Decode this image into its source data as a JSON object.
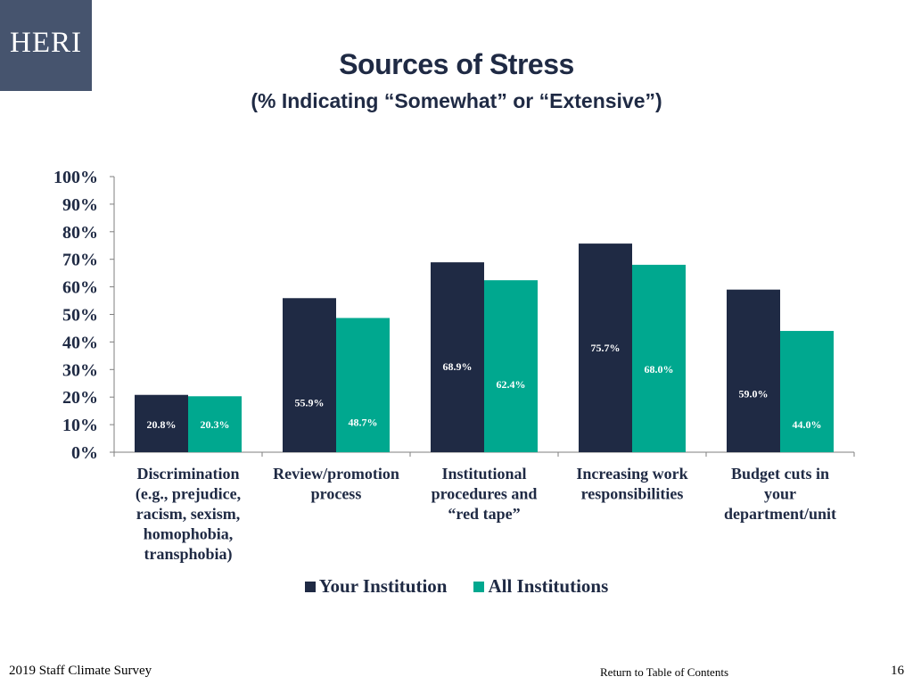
{
  "logo": {
    "text": "HERI"
  },
  "header": {
    "title": "Sources of Stress",
    "subtitle": "(% Indicating “Somewhat” or “Extensive”)"
  },
  "chart_data": {
    "type": "bar",
    "title": "Sources of Stress",
    "subtitle": "(% Indicating “Somewhat” or “Extensive”)",
    "categories": [
      [
        "Discrimination",
        "(e.g., prejudice,",
        "racism, sexism,",
        "homophobia,",
        "transphobia)"
      ],
      [
        "Review/promotion",
        "process"
      ],
      [
        "Institutional",
        "procedures and",
        "“red tape”"
      ],
      [
        "Increasing work",
        "responsibilities"
      ],
      [
        "Budget cuts in",
        "your",
        "department/unit"
      ]
    ],
    "series": [
      {
        "name": "Your Institution",
        "color": "#1f2a44",
        "values": [
          20.8,
          55.9,
          68.9,
          75.7,
          59.0
        ],
        "labels": [
          "20.8%",
          "55.9%",
          "68.9%",
          "75.7%",
          "59.0%"
        ]
      },
      {
        "name": "All Institutions",
        "color": "#00a88f",
        "values": [
          20.3,
          48.7,
          62.4,
          68.0,
          44.0
        ],
        "labels": [
          "20.3%",
          "48.7%",
          "62.4%",
          "68.0%",
          "44.0%"
        ]
      }
    ],
    "yticks": [
      "0%",
      "10%",
      "20%",
      "30%",
      "40%",
      "50%",
      "60%",
      "70%",
      "80%",
      "90%",
      "100%"
    ],
    "ylim": [
      0,
      100
    ],
    "grid": false,
    "legend_position": "bottom"
  },
  "footer": {
    "survey": "2019 Staff Climate Survey",
    "toc_link": "Return to Table of Contents",
    "page_number": "16"
  }
}
